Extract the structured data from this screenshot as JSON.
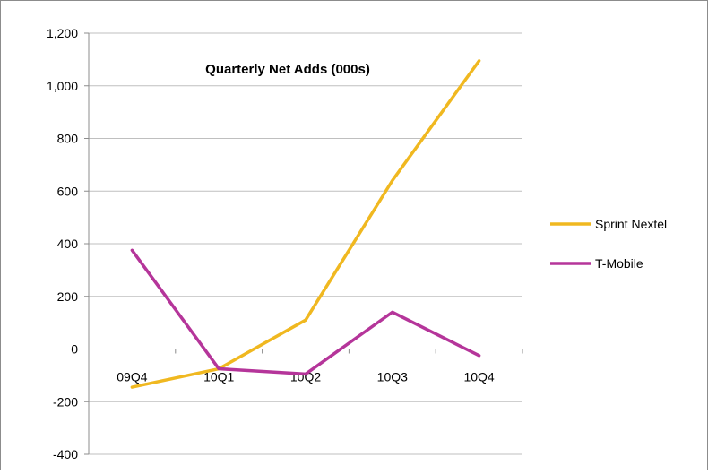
{
  "chart_data": {
    "type": "line",
    "title": "Quarterly Net Adds (000s)",
    "xlabel": "",
    "ylabel": "",
    "categories": [
      "09Q4",
      "10Q1",
      "10Q2",
      "10Q3",
      "10Q4"
    ],
    "y_ticks": [
      1200,
      1000,
      800,
      600,
      400,
      200,
      0,
      -200,
      -400
    ],
    "y_tick_labels": [
      "1,200",
      "1,000",
      "800",
      "600",
      "400",
      "200",
      "0",
      "-200",
      "-400"
    ],
    "ylim": [
      -400,
      1200
    ],
    "grid": true,
    "legend_position": "right",
    "series": [
      {
        "name": "Sprint Nextel",
        "color": "#f0b820",
        "values": [
          -145,
          -75,
          110,
          640,
          1095
        ]
      },
      {
        "name": "T-Mobile",
        "color": "#b5359a",
        "values": [
          375,
          -75,
          -95,
          140,
          -25
        ]
      }
    ]
  }
}
